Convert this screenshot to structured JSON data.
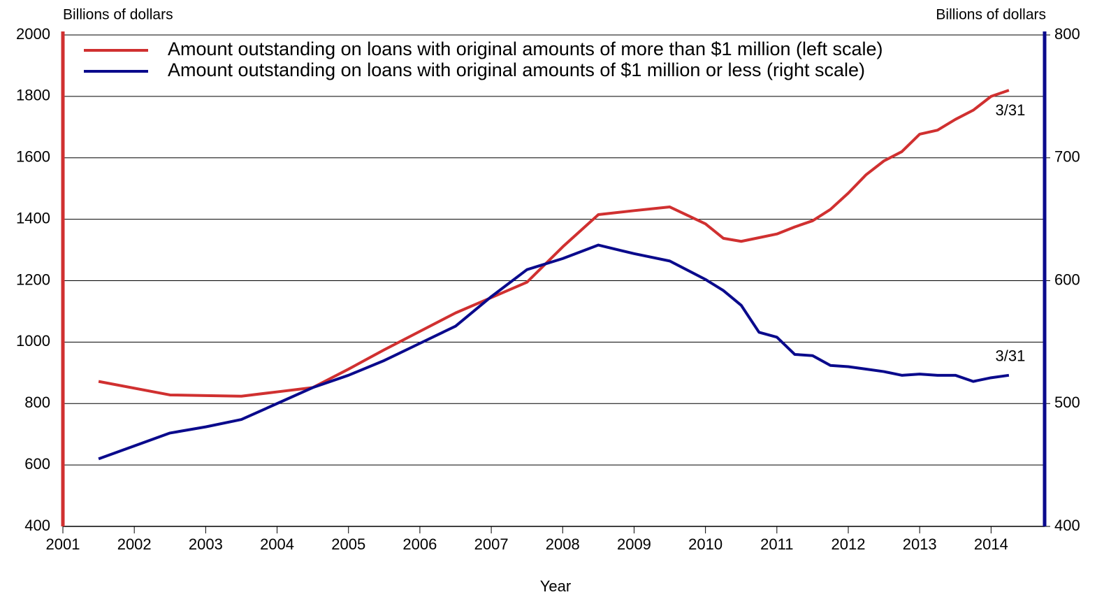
{
  "chart_data": {
    "type": "line",
    "y_label": "Billions of dollars",
    "y2_label": "Billions of dollars",
    "x_label": "Year",
    "x": [
      2001.5,
      2002.5,
      2003.0,
      2003.5,
      2004.0,
      2004.5,
      2005.0,
      2005.5,
      2006.0,
      2006.5,
      2007.0,
      2007.5,
      2008.0,
      2008.5,
      2009.0,
      2009.5,
      2010.0,
      2010.25,
      2010.5,
      2010.75,
      2011.0,
      2011.25,
      2011.5,
      2011.75,
      2012.0,
      2012.25,
      2012.5,
      2012.75,
      2013.0,
      2013.25,
      2013.5,
      2013.75,
      2014.0,
      2014.25
    ],
    "series": [
      {
        "name": "Amount outstanding on loans with original amounts of more than $1 million (left scale)",
        "color": "#d03030",
        "values": [
          872,
          828,
          826,
          824,
          838,
          852,
          912,
          975,
          1035,
          1095,
          1145,
          1195,
          1310,
          1415,
          1428,
          1440,
          1385,
          1338,
          1328,
          1340,
          1352,
          1375,
          1395,
          1432,
          1485,
          1545,
          1590,
          1620,
          1677,
          1690,
          1725,
          1755,
          1800,
          1820
        ]
      },
      {
        "name": "Amount outstanding on loans with original amounts of $1 million or less (right scale)",
        "color": "#0a0a8c",
        "axis": "y2",
        "values": [
          455,
          476,
          481,
          487,
          500,
          513,
          523,
          535,
          549,
          563,
          587,
          609,
          618,
          629,
          622,
          616,
          601,
          592,
          580,
          558,
          554,
          540,
          539,
          531,
          530,
          528,
          526,
          523,
          524,
          523,
          523,
          518,
          521,
          523
        ]
      }
    ],
    "annotations": [
      "3/31",
      "3/31"
    ],
    "xlim": [
      2001,
      2014.75
    ],
    "xticks": [
      2001,
      2002,
      2003,
      2004,
      2005,
      2006,
      2007,
      2008,
      2009,
      2010,
      2011,
      2012,
      2013,
      2014
    ],
    "ylim": [
      400,
      2000
    ],
    "yticks": [
      400,
      600,
      800,
      1000,
      1200,
      1400,
      1600,
      1800,
      2000
    ],
    "y2lim": [
      400,
      800
    ],
    "y2ticks": [
      400,
      500,
      600,
      700,
      800
    ],
    "grid": true,
    "legend": "top"
  }
}
